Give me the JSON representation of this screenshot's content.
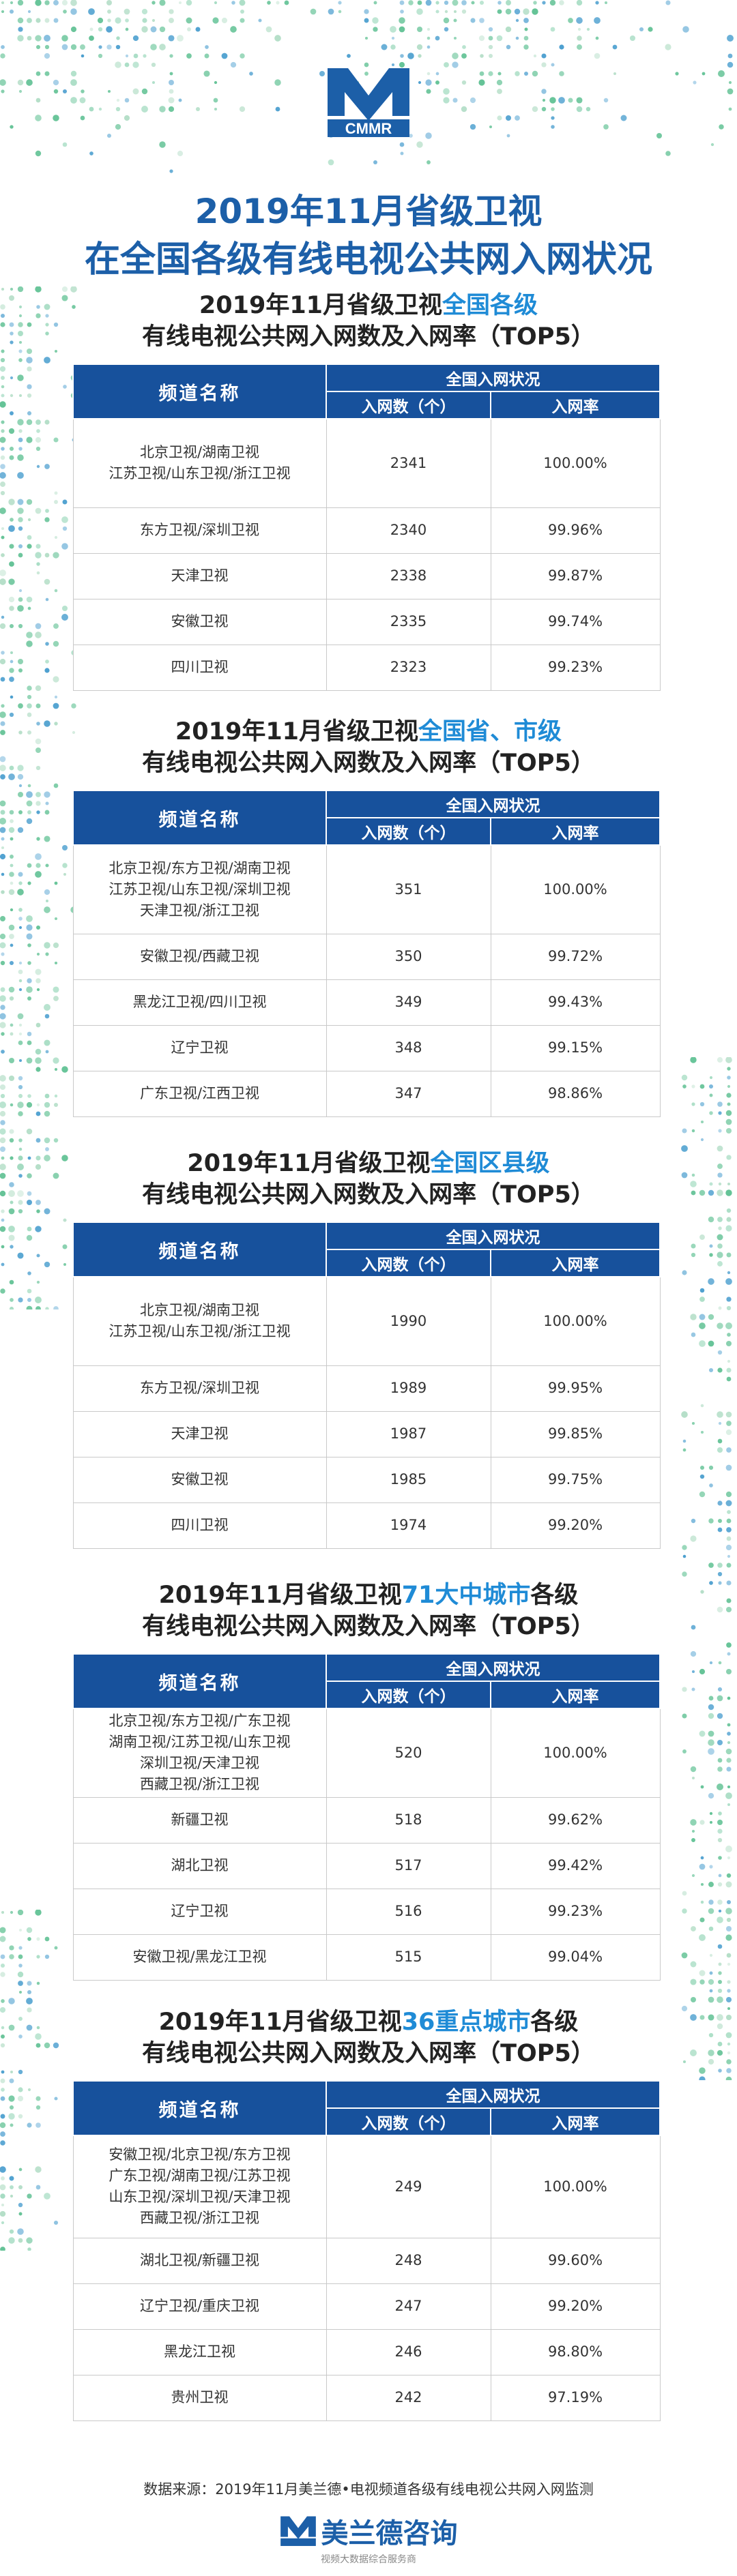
{
  "brand": {
    "logo_text": "CMMR",
    "footer_name": "美兰德咨询",
    "footer_slogan": "视频大数据综合服务商"
  },
  "title": {
    "line1": "2019年11月省级卫视",
    "line2": "在全国各级有线电视公共网入网状况"
  },
  "common": {
    "col_channel": "频道名称",
    "col_group": "全国入网状况",
    "col_rate": "入网率"
  },
  "sections": [
    {
      "title_a": "2019年11月省级卫视",
      "title_hl": "全国各级",
      "title_b": "",
      "title_line2": "有线电视公共网入网数及入网率（TOP5）",
      "col_count": "入网数（个）",
      "rows": [
        {
          "name": "北京卫视/湖南卫视\n江苏卫视/山东卫视/浙江卫视",
          "count": "2341",
          "rate": "100.00%"
        },
        {
          "name": "东方卫视/深圳卫视",
          "count": "2340",
          "rate": "99.96%"
        },
        {
          "name": "天津卫视",
          "count": "2338",
          "rate": "99.87%"
        },
        {
          "name": "安徽卫视",
          "count": "2335",
          "rate": "99.74%"
        },
        {
          "name": "四川卫视",
          "count": "2323",
          "rate": "99.23%"
        }
      ]
    },
    {
      "title_a": "2019年11月省级卫视",
      "title_hl": "全国省、市级",
      "title_b": "",
      "title_line2": "有线电视公共网入网数及入网率（TOP5）",
      "col_count": "入网数（个）",
      "rows": [
        {
          "name": "北京卫视/东方卫视/湖南卫视\n江苏卫视/山东卫视/深圳卫视\n天津卫视/浙江卫视",
          "count": "351",
          "rate": "100.00%"
        },
        {
          "name": "安徽卫视/西藏卫视",
          "count": "350",
          "rate": "99.72%"
        },
        {
          "name": "黑龙江卫视/四川卫视",
          "count": "349",
          "rate": "99.43%"
        },
        {
          "name": "辽宁卫视",
          "count": "348",
          "rate": "99.15%"
        },
        {
          "name": "广东卫视/江西卫视",
          "count": "347",
          "rate": "98.86%"
        }
      ]
    },
    {
      "title_a": "2019年11月省级卫视",
      "title_hl": "全国区县级",
      "title_b": "",
      "title_line2": "有线电视公共网入网数及入网率（TOP5）",
      "col_count": "入网数（个）",
      "rows": [
        {
          "name": "北京卫视/湖南卫视\n江苏卫视/山东卫视/浙江卫视",
          "count": "1990",
          "rate": "100.00%"
        },
        {
          "name": "东方卫视/深圳卫视",
          "count": "1989",
          "rate": "99.95%"
        },
        {
          "name": "天津卫视",
          "count": "1987",
          "rate": "99.85%"
        },
        {
          "name": "安徽卫视",
          "count": "1985",
          "rate": "99.75%"
        },
        {
          "name": "四川卫视",
          "count": "1974",
          "rate": "99.20%"
        }
      ]
    },
    {
      "title_a": "2019年11月省级卫视",
      "title_hl": "71大中城市",
      "title_b": "各级",
      "title_line2": "有线电视公共网入网数及入网率（TOP5）",
      "col_count": "入网数（个）",
      "rows": [
        {
          "name": "北京卫视/东方卫视/广东卫视\n湖南卫视/江苏卫视/山东卫视\n深圳卫视/天津卫视\n西藏卫视/浙江卫视",
          "count": "520",
          "rate": "100.00%"
        },
        {
          "name": "新疆卫视",
          "count": "518",
          "rate": "99.62%"
        },
        {
          "name": "湖北卫视",
          "count": "517",
          "rate": "99.42%"
        },
        {
          "name": "辽宁卫视",
          "count": "516",
          "rate": "99.23%"
        },
        {
          "name": "安徽卫视/黑龙江卫视",
          "count": "515",
          "rate": "99.04%"
        }
      ]
    },
    {
      "title_a": "2019年11月省级卫视",
      "title_hl": "36重点城市",
      "title_b": "各级",
      "title_line2": "有线电视公共网入网数及入网率（TOP5）",
      "col_count": "入网数（个）",
      "rows": [
        {
          "name": "安徽卫视/北京卫视/东方卫视\n广东卫视/湖南卫视/江苏卫视\n山东卫视/深圳卫视/天津卫视\n西藏卫视/浙江卫视",
          "count": "249",
          "rate": "100.00%"
        },
        {
          "name": "湖北卫视/新疆卫视",
          "count": "248",
          "rate": "99.60%"
        },
        {
          "name": "辽宁卫视/重庆卫视",
          "count": "247",
          "rate": "99.20%"
        },
        {
          "name": "黑龙江卫视",
          "count": "246",
          "rate": "98.80%"
        },
        {
          "name": "贵州卫视",
          "count": "242",
          "rate": "97.19%"
        }
      ]
    }
  ],
  "source": "数据来源：2019年11月美兰德•电视频道各级有线电视公共网入网监测",
  "colors": {
    "header_blue": "#17519c",
    "title_blue": "#1c5fa8",
    "highlight_blue": "#1f8bd6",
    "dot_green": "#3fb37a"
  }
}
